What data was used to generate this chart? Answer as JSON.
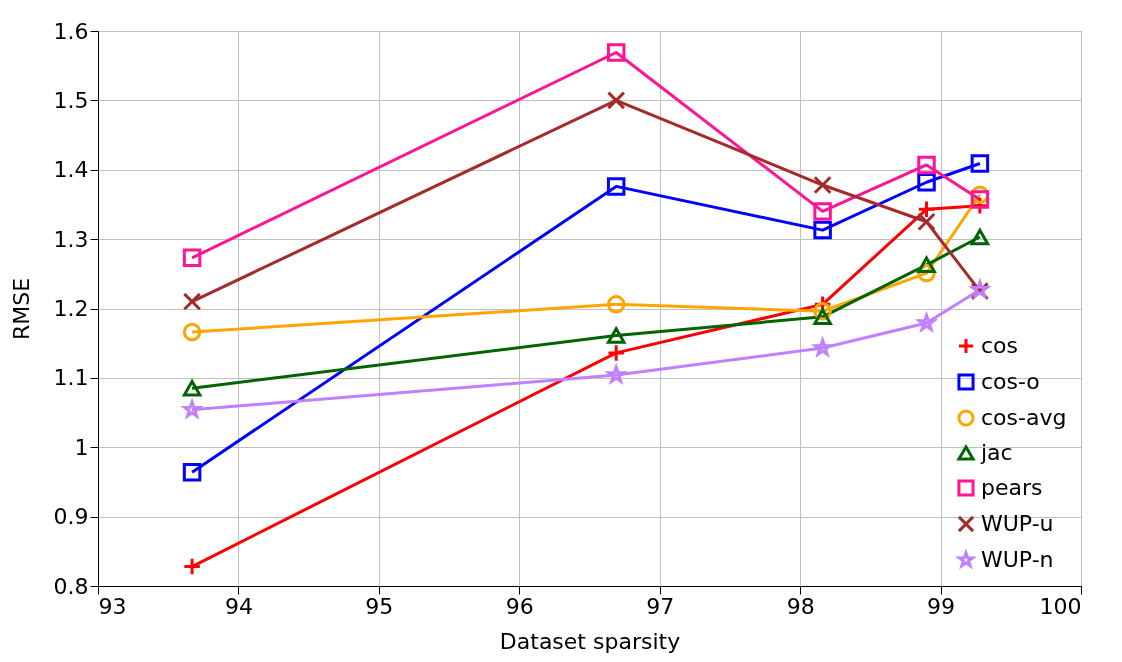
{
  "chart_data": {
    "type": "line",
    "xlabel": "Dataset sparsity",
    "ylabel": "RMSE",
    "x": [
      93.67,
      96.69,
      98.16,
      98.9,
      99.28
    ],
    "xlim": [
      93,
      100
    ],
    "xticks": [
      93,
      94,
      95,
      96,
      97,
      98,
      99,
      100
    ],
    "ylim": [
      0.8,
      1.6
    ],
    "yticks": [
      0.8,
      0.9,
      1,
      1.1,
      1.2,
      1.3,
      1.4,
      1.5,
      1.6
    ],
    "grid": true,
    "legend": "bottom right",
    "series": [
      {
        "name": "cos",
        "color": "#ff0000",
        "marker": "cross",
        "values": [
          0.828,
          1.136,
          1.206,
          1.343,
          1.348
        ]
      },
      {
        "name": "cos-o",
        "color": "#0000ff",
        "marker": "square",
        "values": [
          0.964,
          1.376,
          1.313,
          1.382,
          1.409
        ]
      },
      {
        "name": "cos-avg",
        "color": "#ffa500",
        "marker": "circle",
        "values": [
          1.166,
          1.206,
          1.196,
          1.251,
          1.364
        ]
      },
      {
        "name": "jac",
        "color": "#006400",
        "marker": "triangle",
        "values": [
          1.085,
          1.161,
          1.188,
          1.263,
          1.303
        ]
      },
      {
        "name": "pears",
        "color": "#ff1493",
        "marker": "square",
        "values": [
          1.273,
          1.569,
          1.34,
          1.407,
          1.357
        ]
      },
      {
        "name": "WUP-u",
        "color": "#a52a2a",
        "marker": "x",
        "values": [
          1.21,
          1.5,
          1.378,
          1.325,
          1.225
        ]
      },
      {
        "name": "WUP-n",
        "color": "#c080ff",
        "marker": "star",
        "values": [
          1.054,
          1.104,
          1.143,
          1.179,
          1.227
        ]
      }
    ]
  }
}
